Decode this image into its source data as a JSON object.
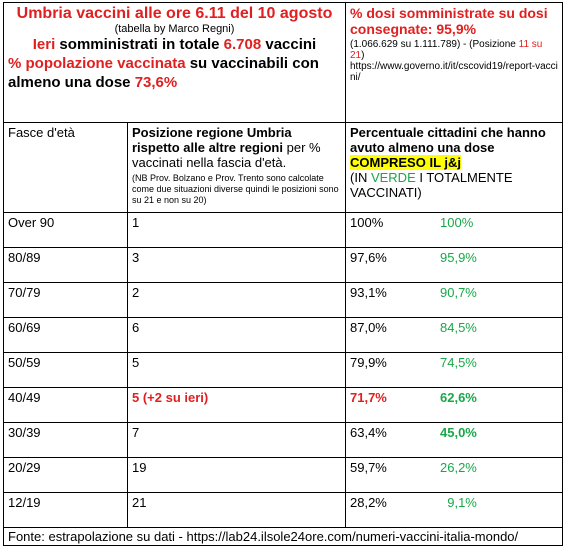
{
  "header": {
    "title": "Umbria vaccini alle ore 6.11 del 10 agosto",
    "subtitle": "(tabella by Marco Regni)",
    "line1": [
      "Ieri",
      " somministrati in totale ",
      "6.708",
      " vaccini"
    ],
    "line2": [
      "% popolazione vaccinata",
      " su vaccinabili con almeno una dose ",
      "73,6%"
    ],
    "right_title": "% dosi somministrate su dosi consegnate: 95,9%",
    "right_detail": [
      "(1.066.629 su 1.111.789) - (Posizione ",
      "11 su 21",
      ")"
    ],
    "right_url": "https://www.governo.it/it/cscovid19/report-vaccini/"
  },
  "table": {
    "columns": [
      [
        "Fasce d'età"
      ],
      [
        "Posizione regione  Umbria rispetto alle altre regioni",
        " per % vaccinati nella fascia d'età.",
        "(NB Prov. Bolzano e Prov. Trento sono calcolate come due situazioni diverse quindi le posizioni sono su 21 e non su 20)"
      ],
      [
        "Percentuale cittadini che hanno avuto almeno una dose ",
        "COMPRESO IL j&j",
        "(IN ",
        "VERDE",
        " I TOTALMENTE VACCINATI)"
      ]
    ],
    "rows": [
      [
        "Over 90",
        "1",
        "100%",
        "100%"
      ],
      [
        "80/89",
        "3",
        "97,6%",
        "95,9%"
      ],
      [
        "70/79",
        "2",
        "93,1%",
        "90,7%"
      ],
      [
        "60/69",
        "6",
        "87,0%",
        "84,5%"
      ],
      [
        "50/59",
        "5",
        "79,9%",
        "74,5%"
      ],
      [
        "40/49",
        "5 (+2 su ieri)",
        "71,7%",
        "62,6%"
      ],
      [
        "30/39",
        "7",
        "63,4%",
        "45,0%"
      ],
      [
        "20/29",
        "19",
        "59,7%",
        "26,2%"
      ],
      [
        "12/19",
        "21",
        "28,2%",
        "9,1%"
      ]
    ]
  },
  "footer": "Fonte: estrapolazione su dati - https://lab24.ilsole24ore.com/numeri-vaccini-italia-mondo/"
}
